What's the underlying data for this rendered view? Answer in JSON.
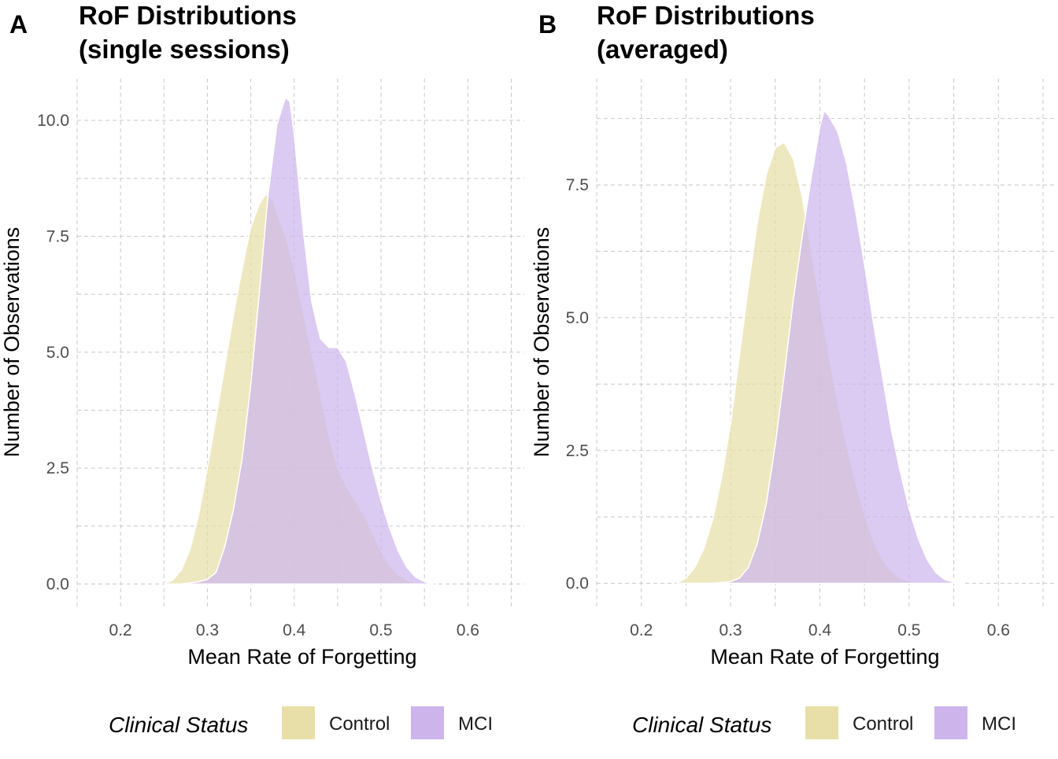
{
  "colors": {
    "control": "#e8dfa8",
    "mci": "#cdb5ec",
    "outline": "#ffffff"
  },
  "legend": {
    "title": "Clinical Status"
  },
  "chart_data": [
    {
      "type": "area",
      "tag": "A",
      "title_line1": "RoF Distributions",
      "title_line2": "(single sessions)",
      "xlabel": "Mean Rate of Forgetting",
      "ylabel": "Number of Observations",
      "xlim": [
        0.15,
        0.665
      ],
      "ylim": [
        -0.5,
        10.9
      ],
      "x_ticks": [
        0.2,
        0.3,
        0.4,
        0.5,
        0.6
      ],
      "x_tick_labels": [
        "0.2",
        "0.3",
        "0.4",
        "0.5",
        "0.6"
      ],
      "y_ticks": [
        0.0,
        2.5,
        5.0,
        7.5,
        10.0
      ],
      "y_tick_labels": [
        "0.0",
        "2.5",
        "5.0",
        "7.5",
        "10.0"
      ],
      "grid": true,
      "legend_position": "bottom",
      "series": [
        {
          "name": "Control",
          "x": [
            0.25,
            0.26,
            0.27,
            0.28,
            0.29,
            0.3,
            0.31,
            0.32,
            0.33,
            0.34,
            0.35,
            0.36,
            0.367,
            0.375,
            0.38,
            0.39,
            0.4,
            0.41,
            0.42,
            0.43,
            0.44,
            0.45,
            0.46,
            0.47,
            0.48,
            0.49,
            0.5,
            0.51,
            0.52,
            0.53,
            0.54,
            0.55
          ],
          "y": [
            0.0,
            0.08,
            0.3,
            0.75,
            1.5,
            2.5,
            3.6,
            4.7,
            5.8,
            6.8,
            7.7,
            8.2,
            8.4,
            8.3,
            8.0,
            7.5,
            6.8,
            5.9,
            5.0,
            4.1,
            3.2,
            2.5,
            2.1,
            1.8,
            1.5,
            1.1,
            0.7,
            0.4,
            0.2,
            0.08,
            0.02,
            0.0
          ]
        },
        {
          "name": "MCI",
          "x": [
            0.27,
            0.29,
            0.3,
            0.31,
            0.32,
            0.33,
            0.34,
            0.35,
            0.36,
            0.37,
            0.38,
            0.39,
            0.395,
            0.4,
            0.41,
            0.42,
            0.43,
            0.44,
            0.45,
            0.46,
            0.47,
            0.48,
            0.49,
            0.5,
            0.51,
            0.52,
            0.53,
            0.54,
            0.55,
            0.56
          ],
          "y": [
            0.0,
            0.05,
            0.1,
            0.25,
            0.8,
            1.6,
            2.7,
            4.3,
            6.3,
            8.4,
            9.9,
            10.5,
            10.4,
            9.7,
            7.7,
            6.1,
            5.3,
            5.1,
            5.1,
            4.8,
            4.1,
            3.3,
            2.5,
            1.8,
            1.2,
            0.7,
            0.35,
            0.15,
            0.05,
            0.0
          ]
        }
      ]
    },
    {
      "type": "area",
      "tag": "B",
      "title_line1": "RoF Distributions",
      "title_line2": "(averaged)",
      "xlabel": "Mean Rate of Forgetting",
      "ylabel": "Number of Observations",
      "xlim": [
        0.15,
        0.665
      ],
      "ylim": [
        -0.45,
        9.5
      ],
      "x_ticks": [
        0.2,
        0.3,
        0.4,
        0.5,
        0.6
      ],
      "x_tick_labels": [
        "0.2",
        "0.3",
        "0.4",
        "0.5",
        "0.6"
      ],
      "y_ticks": [
        0.0,
        2.5,
        5.0,
        7.5
      ],
      "y_tick_labels": [
        "0.0",
        "2.5",
        "5.0",
        "7.5"
      ],
      "grid": true,
      "legend_position": "bottom",
      "series": [
        {
          "name": "Control",
          "x": [
            0.24,
            0.25,
            0.26,
            0.27,
            0.28,
            0.29,
            0.3,
            0.31,
            0.32,
            0.33,
            0.34,
            0.35,
            0.36,
            0.37,
            0.38,
            0.39,
            0.4,
            0.41,
            0.42,
            0.43,
            0.44,
            0.45,
            0.46,
            0.47,
            0.48,
            0.49,
            0.5,
            0.51,
            0.52
          ],
          "y": [
            0.0,
            0.1,
            0.3,
            0.65,
            1.2,
            2.0,
            3.0,
            4.3,
            5.6,
            6.8,
            7.7,
            8.2,
            8.3,
            8.0,
            7.3,
            6.3,
            5.3,
            4.3,
            3.4,
            2.6,
            1.9,
            1.3,
            0.8,
            0.45,
            0.22,
            0.1,
            0.04,
            0.01,
            0.0
          ]
        },
        {
          "name": "MCI",
          "x": [
            0.28,
            0.3,
            0.31,
            0.32,
            0.33,
            0.34,
            0.35,
            0.36,
            0.37,
            0.38,
            0.39,
            0.4,
            0.405,
            0.41,
            0.42,
            0.43,
            0.44,
            0.45,
            0.46,
            0.47,
            0.48,
            0.49,
            0.5,
            0.51,
            0.52,
            0.53,
            0.54,
            0.55,
            0.56
          ],
          "y": [
            0.0,
            0.03,
            0.1,
            0.3,
            0.75,
            1.5,
            2.6,
            3.9,
            5.3,
            6.5,
            7.6,
            8.6,
            8.9,
            8.8,
            8.5,
            7.9,
            7.0,
            6.0,
            4.9,
            3.9,
            2.9,
            2.1,
            1.4,
            0.85,
            0.45,
            0.2,
            0.07,
            0.02,
            0.0
          ]
        }
      ]
    }
  ]
}
